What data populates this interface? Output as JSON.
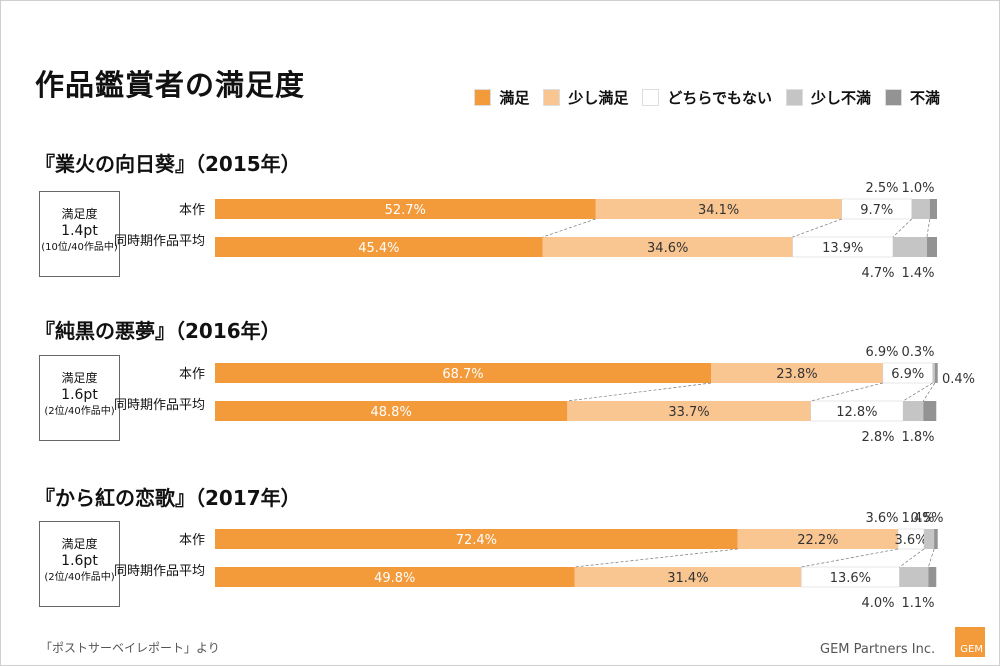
{
  "page": {
    "title": "作品鑑賞者の満足度",
    "footer": "「ポストサーベイレポート」より",
    "company": "GEM Partners Inc.",
    "logo_text": "GEM"
  },
  "colors": {
    "satisfied": "#f39a3b",
    "somewhat_satisfied": "#f9c591",
    "neutral": "#ffffff",
    "somewhat_dissatisfied": "#c5c5c5",
    "dissatisfied": "#939393"
  },
  "legend": [
    "満足",
    "少し満足",
    "どちらでもない",
    "少し不満",
    "不満"
  ],
  "chart_data": [
    {
      "type": "bar",
      "title": "『業火の向日葵』（2015年）",
      "metric_label": "満足度",
      "metric_value": "1.4pt",
      "metric_note": "(10位/40作品中)",
      "categories": [
        "本作",
        "同時期作品平均"
      ],
      "series": [
        {
          "name": "満足",
          "values": [
            52.7,
            45.4
          ]
        },
        {
          "name": "少し満足",
          "values": [
            34.1,
            34.6
          ]
        },
        {
          "name": "どちらでもない",
          "values": [
            9.7,
            13.9
          ]
        },
        {
          "name": "少し不満",
          "values": [
            2.5,
            4.7
          ]
        },
        {
          "name": "不満",
          "values": [
            1.0,
            1.4
          ]
        }
      ],
      "labels": {
        "top": [
          "2.5%",
          "1.0%"
        ],
        "bottom": [
          "4.7%",
          "1.4%"
        ],
        "right": ""
      }
    },
    {
      "type": "bar",
      "title": "『純黒の悪夢』（2016年）",
      "metric_label": "満足度",
      "metric_value": "1.6pt",
      "metric_note": "(2位/40作品中)",
      "categories": [
        "本作",
        "同時期作品平均"
      ],
      "series": [
        {
          "name": "満足",
          "values": [
            68.7,
            48.8
          ]
        },
        {
          "name": "少し満足",
          "values": [
            23.8,
            33.7
          ]
        },
        {
          "name": "どちらでもない",
          "values": [
            6.9,
            12.8
          ]
        },
        {
          "name": "少し不満",
          "values": [
            0.3,
            2.8
          ]
        },
        {
          "name": "不満",
          "values": [
            0.4,
            1.8
          ]
        }
      ],
      "labels": {
        "top": [
          "6.9%",
          "0.3%"
        ],
        "bottom": [
          "2.8%",
          "1.8%"
        ],
        "right": "0.4%"
      }
    },
    {
      "type": "bar",
      "title": "『から紅の恋歌』（2017年）",
      "metric_label": "満足度",
      "metric_value": "1.6pt",
      "metric_note": "(2位/40作品中)",
      "categories": [
        "本作",
        "同時期作品平均"
      ],
      "series": [
        {
          "name": "満足",
          "values": [
            72.4,
            49.8
          ]
        },
        {
          "name": "少し満足",
          "values": [
            22.2,
            31.4
          ]
        },
        {
          "name": "どちらでもない",
          "values": [
            3.6,
            13.6
          ]
        },
        {
          "name": "少し不満",
          "values": [
            1.4,
            4.0
          ]
        },
        {
          "name": "不満",
          "values": [
            0.5,
            1.1
          ]
        }
      ],
      "labels": {
        "top": [
          "3.6%",
          "1.4%",
          "0.5%"
        ],
        "bottom": [
          "4.0%",
          "1.1%"
        ],
        "right": ""
      }
    }
  ]
}
